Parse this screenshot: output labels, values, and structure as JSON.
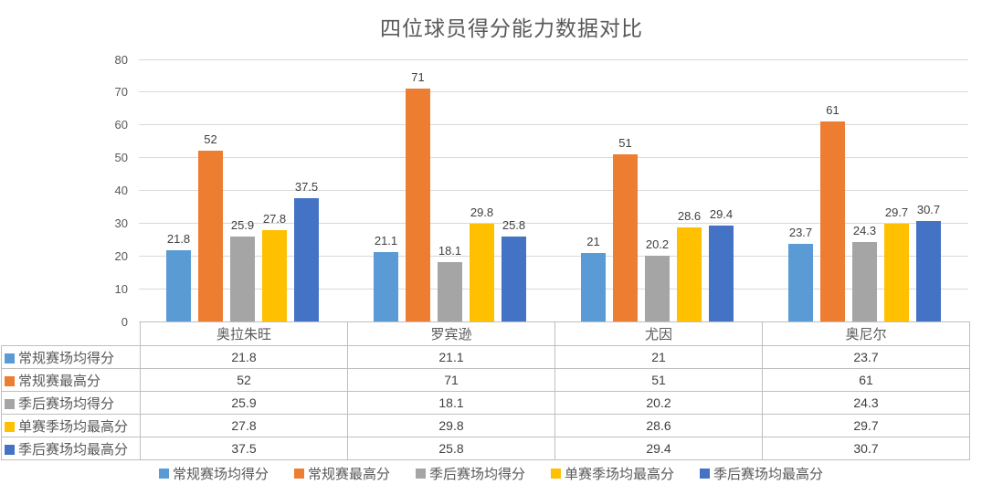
{
  "chart_data": {
    "type": "bar",
    "title": "四位球员得分能力数据对比",
    "categories": [
      "奥拉朱旺",
      "罗宾逊",
      "尤因",
      "奥尼尔"
    ],
    "series": [
      {
        "name": "常规赛场均得分",
        "color": "#5B9BD5",
        "values": [
          21.8,
          21.1,
          21,
          23.7
        ]
      },
      {
        "name": "常规赛最高分",
        "color": "#ED7D31",
        "values": [
          52,
          71,
          51,
          61
        ]
      },
      {
        "name": "季后赛场均得分",
        "color": "#A5A5A5",
        "values": [
          25.9,
          18.1,
          20.2,
          24.3
        ]
      },
      {
        "name": "单赛季场均最高分",
        "color": "#FFC000",
        "values": [
          27.8,
          29.8,
          28.6,
          29.7
        ]
      },
      {
        "name": "季后赛场均最高分",
        "color": "#4472C4",
        "values": [
          37.5,
          25.8,
          29.4,
          30.7
        ]
      }
    ],
    "xlabel": "",
    "ylabel": "",
    "ylim": [
      0,
      80
    ],
    "ytick_step": 10,
    "grid": true,
    "data_labels": true,
    "legend_position": "bottom",
    "data_table_shown": true,
    "colors": {
      "title_text": "#595959",
      "axis_text": "#595959",
      "value_text": "#404040",
      "gridline": "#D9D9D9",
      "table_border": "#BFBFBF"
    }
  }
}
